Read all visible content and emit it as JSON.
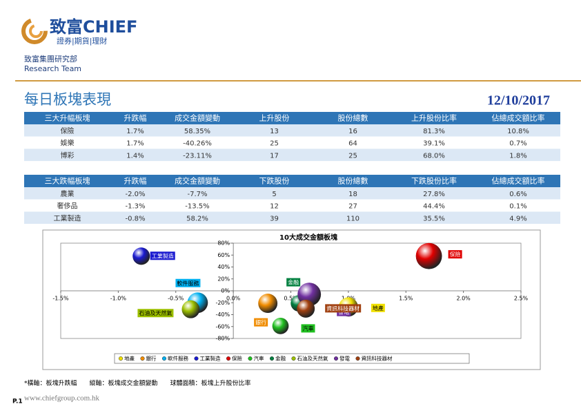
{
  "header": {
    "brand": "致富CHIEF",
    "tagline": "證券|期貨|理財",
    "department": "致富集團研究部",
    "team": "Research Team",
    "title": "每日板塊表現",
    "date": "12/10/2017"
  },
  "tables": [
    {
      "header": [
        "三大升幅板塊",
        "升跌幅",
        "成交金額變動",
        "上升股份",
        "股份總數",
        "上升股份比率",
        "佔總成交額比率"
      ],
      "rows": [
        [
          "保險",
          "1.7%",
          "58.35%",
          "13",
          "16",
          "81.3%",
          "10.8%"
        ],
        [
          "娛樂",
          "1.7%",
          "-40.26%",
          "25",
          "64",
          "39.1%",
          "0.7%"
        ],
        [
          "博彩",
          "1.4%",
          "-23.11%",
          "17",
          "25",
          "68.0%",
          "1.8%"
        ]
      ]
    },
    {
      "header": [
        "三大跌幅板塊",
        "升跌幅",
        "成交金額變動",
        "下跌股份",
        "股份總數",
        "下跌股份比率",
        "佔總成交額比率"
      ],
      "rows": [
        [
          "農業",
          "-2.0%",
          "-7.7%",
          "5",
          "18",
          "27.8%",
          "0.6%"
        ],
        [
          "奢侈品",
          "-1.3%",
          "-13.5%",
          "12",
          "27",
          "44.4%",
          "0.1%"
        ],
        [
          "工業製造",
          "-0.8%",
          "58.2%",
          "39",
          "110",
          "35.5%",
          "4.9%"
        ]
      ]
    }
  ],
  "chart_data": {
    "type": "bubble",
    "title": "10大成交金額板塊",
    "series": [
      {
        "name": "地產",
        "color": "#f0e000",
        "x": [
          1.0
        ],
        "values": [
          -27
        ],
        "size": [
          44
        ]
      },
      {
        "name": "銀行",
        "color": "#f08c00",
        "x": [
          0.3
        ],
        "values": [
          -21
        ],
        "size": [
          44
        ]
      },
      {
        "name": "軟件服務",
        "color": "#00b0f0",
        "x": [
          -0.31
        ],
        "values": [
          -20
        ],
        "size": [
          50
        ]
      },
      {
        "name": "工業製造",
        "color": "#1a1ad0",
        "x": [
          -0.8
        ],
        "values": [
          58.2
        ],
        "size": [
          35.5
        ]
      },
      {
        "name": "保險",
        "color": "#e00000",
        "x": [
          1.7
        ],
        "values": [
          58.35
        ],
        "size": [
          81.3
        ]
      },
      {
        "name": "汽車",
        "color": "#20c020",
        "x": [
          0.41
        ],
        "values": [
          -59
        ],
        "size": [
          32
        ]
      },
      {
        "name": "金融",
        "color": "#008040",
        "x": [
          0.57
        ],
        "values": [
          -21
        ],
        "size": [
          32
        ]
      },
      {
        "name": "石油及天然氣",
        "color": "#9cbf00",
        "x": [
          -0.37
        ],
        "values": [
          -31
        ],
        "size": [
          38
        ]
      },
      {
        "name": "發電",
        "color": "#7030a0",
        "x": [
          0.66
        ],
        "values": [
          -6
        ],
        "size": [
          65
        ]
      },
      {
        "name": "資訊科技器材",
        "color": "#a04010",
        "x": [
          0.63
        ],
        "values": [
          -30
        ],
        "size": [
          38
        ]
      }
    ],
    "xlim": [
      -1.5,
      2.5
    ],
    "ylim": [
      -80,
      80
    ],
    "xticks": [
      {
        "value": -1.5,
        "label": "-1.5%"
      },
      {
        "value": -1.0,
        "label": "-1.0%"
      },
      {
        "value": -0.5,
        "label": "-0.5%"
      },
      {
        "value": 0,
        "label": "0.0%"
      },
      {
        "value": 0.5,
        "label": "0.5%"
      },
      {
        "value": 1.0,
        "label": "1.0%"
      },
      {
        "value": 1.5,
        "label": "1.5%"
      },
      {
        "value": 2.0,
        "label": "2.0%"
      },
      {
        "value": 2.5,
        "label": "2.5%"
      }
    ],
    "yticks": [
      {
        "value": -80,
        "label": "-80%"
      },
      {
        "value": -60,
        "label": "-60%"
      },
      {
        "value": -40,
        "label": "-40%"
      },
      {
        "value": -20,
        "label": "-20%"
      },
      {
        "value": 0,
        "label": "0%"
      },
      {
        "value": 20,
        "label": "20%"
      },
      {
        "value": 40,
        "label": "40%"
      },
      {
        "value": 60,
        "label": "60%"
      },
      {
        "value": 80,
        "label": "80%"
      }
    ],
    "legend": "bottom"
  },
  "footer": {
    "note": "*橫軸：板塊升跌幅　　縱軸：板塊成交金額變動　　球體面積：板塊上升股份比率",
    "website": "www.chiefgroup.com.hk",
    "page": "P.1"
  }
}
